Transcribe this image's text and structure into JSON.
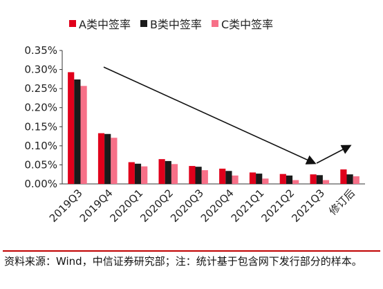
{
  "chart_data": {
    "type": "bar",
    "categories": [
      "2019Q3",
      "2019Q4",
      "2020Q1",
      "2020Q2",
      "2020Q3",
      "2020Q4",
      "2021Q1",
      "2021Q2",
      "2021Q3",
      "修订后"
    ],
    "series": [
      {
        "name": "A类中签率",
        "color": "#e0001b",
        "values": [
          0.293,
          0.133,
          0.057,
          0.065,
          0.047,
          0.04,
          0.03,
          0.026,
          0.025,
          0.038
        ]
      },
      {
        "name": "B类中签率",
        "color": "#1a1a1a",
        "values": [
          0.274,
          0.131,
          0.053,
          0.06,
          0.045,
          0.034,
          0.027,
          0.022,
          0.023,
          0.025
        ]
      },
      {
        "name": "C类中签率",
        "color": "#f77088",
        "values": [
          0.257,
          0.121,
          0.046,
          0.052,
          0.036,
          0.022,
          0.014,
          0.01,
          0.01,
          0.02
        ]
      }
    ],
    "y_ticks": [
      "0.00%",
      "0.05%",
      "0.10%",
      "0.15%",
      "0.20%",
      "0.25%",
      "0.30%",
      "0.35%"
    ],
    "ylim": [
      0,
      0.35
    ],
    "y_unit": "%",
    "grid": false,
    "legend_position": "top",
    "annotation": "arrow trending down from 2019Q4 to 2021Q3, then up toward 修订后"
  },
  "source_note": "资料来源：Wind，中信证券研究部；注：统计基于包含网下发行部分的样本。"
}
